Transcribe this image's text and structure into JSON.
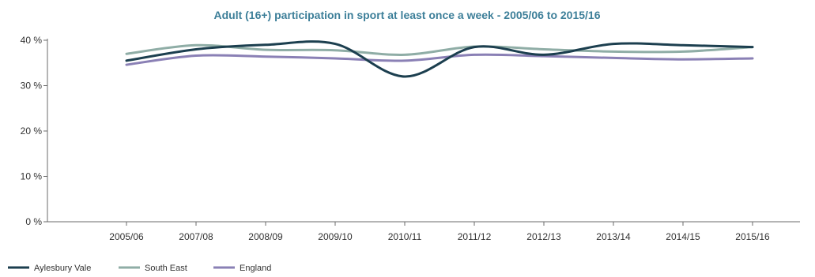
{
  "chart_data": {
    "type": "line",
    "title": "Adult (16+) participation in sport at least once a week - 2005/06 to 2015/16",
    "xlabel": "",
    "ylabel": "",
    "categories": [
      "2005/06",
      "2007/08",
      "2008/09",
      "2009/10",
      "2010/11",
      "2011/12",
      "2012/13",
      "2013/14",
      "2014/15",
      "2015/16"
    ],
    "ylim": [
      0,
      40
    ],
    "yticks": [
      0,
      10,
      20,
      30,
      40
    ],
    "ytick_labels": [
      "0 %",
      "10 %",
      "20 %",
      "30 %",
      "40 %"
    ],
    "grid": false,
    "legend_position": "bottom-left",
    "title_color": "#3d7f99",
    "series": [
      {
        "name": "Aylesbury Vale",
        "color": "#1c3f4f",
        "values": [
          35.5,
          38.0,
          39.0,
          39.2,
          32.0,
          38.5,
          36.8,
          39.2,
          38.9,
          38.5
        ]
      },
      {
        "name": "South East",
        "color": "#8fada6",
        "values": [
          37.0,
          38.9,
          37.9,
          37.8,
          36.8,
          38.6,
          38.0,
          37.5,
          37.5,
          38.5
        ]
      },
      {
        "name": "England",
        "color": "#8a80b5",
        "values": [
          34.6,
          36.6,
          36.4,
          36.0,
          35.5,
          36.8,
          36.5,
          36.1,
          35.8,
          36.0
        ]
      }
    ]
  }
}
